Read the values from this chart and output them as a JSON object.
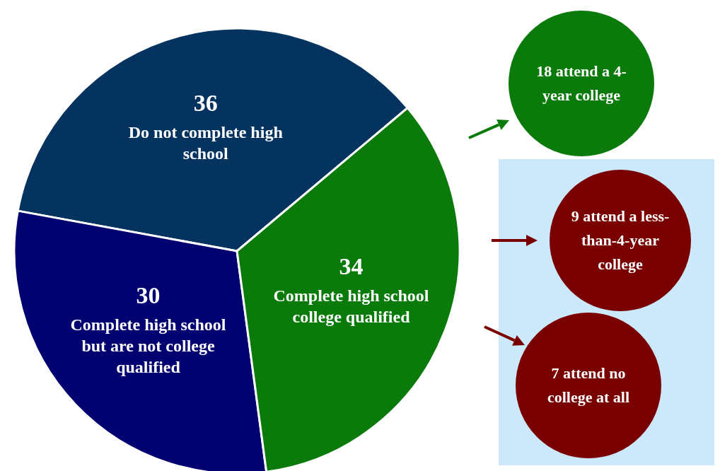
{
  "chart_data": {
    "type": "pie",
    "categories": [
      "Do not complete high school",
      "Complete high school but are not college qualified",
      "Complete high school college qualified"
    ],
    "values": [
      36,
      30,
      34
    ],
    "colors": [
      "#04335f",
      "#000070",
      "#0a7a0a"
    ],
    "data_labels": true,
    "annotations": [
      "18 attend a 4-year college",
      "9 attend a less-than-4-year college",
      "7 attend no college at all"
    ]
  }
}
